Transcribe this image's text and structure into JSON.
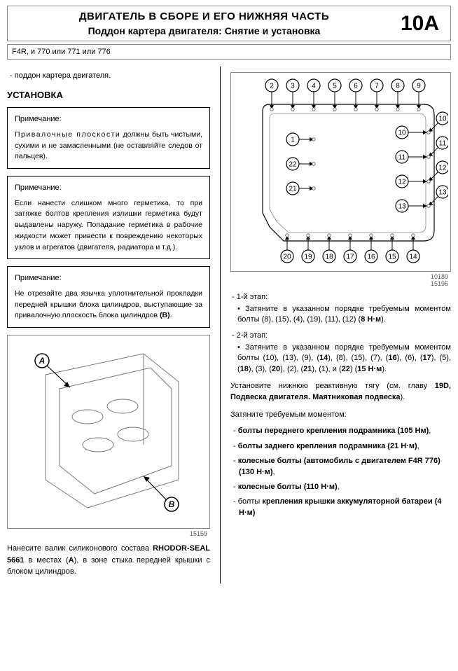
{
  "header": {
    "title1": "ДВИГАТЕЛЬ В СБОРЕ И ЕГО НИЖНЯЯ ЧАСТЬ",
    "title2": "Поддон картера двигателя: Снятие и установка",
    "code": "10A"
  },
  "engine_line": "F4R, и 770 или 771 или 776",
  "intro_item": "поддон картера двигателя.",
  "section_install": "УСТАНОВКА",
  "note1": {
    "label": "Примечание:",
    "text": "Привалочные плоскости должны быть чистыми, сухими и не замасленными (не оставляйте следов от пальцев)."
  },
  "note2": {
    "label": "Примечание:",
    "text": "Если нанести слишком много герметика, то при затяжке болтов крепления излишки герметика будут выдавлены наружу. Попадание герметика в рабочие жидкости может привести к повреждению некоторых узлов и агрегатов (двигателя, радиатора и т.д.)."
  },
  "note3": {
    "label": "Примечание:",
    "text": "Не отрезайте два язычка уплотнительной прокладки передней крышки блока цилиндров, выступающие за привалочную плоскость блока цилиндров (B)."
  },
  "fig_left_num": "15159",
  "caption_left": "Нанесите валик силиконового состава RHODOR-SEAL 5661 в местах (A), в зоне стыка передней крышки с блоком цилиндров.",
  "bolt_diagram": {
    "top_row": [
      2,
      3,
      4,
      5,
      6,
      7,
      8,
      9
    ],
    "right_col": [
      10,
      11,
      12,
      13
    ],
    "bottom_row": [
      20,
      19,
      18,
      17,
      16,
      15,
      14
    ],
    "left_inner": [
      1,
      22,
      21
    ],
    "border_color": "#000",
    "bg_color": "#fff",
    "line_color": "#000",
    "circle_fill": "#fff",
    "fontsize": 10
  },
  "fig_right_inner": "10189",
  "fig_right_num": "15195",
  "stage1_label": "- 1-й этап:",
  "stage1_bullet": "Затяните в указанном порядке требуемым моментом болты (8), (15), (4), (19), (11), (12) (8 Н·м).",
  "stage2_label": "- 2-й этап:",
  "stage2_bullet": "Затяните в указанном порядке требуемым моментом болты (10), (13), (9), (14), (8), (15), (7), (16), (6), (17), (5), (18), (3), (20), (2), (21), (1), и (22) (15 Н·м).",
  "para_reactive": "Установите нижнюю реактивную тягу (см. главу 19D, Подвеска двигателя. Маятниковая подвеска).",
  "para_torque": "Затяните требуемым моментом:",
  "torque_items": [
    "болты переднего крепления подрамника (105 Нм),",
    "болты заднего крепления подрамника (21 Н·м),",
    "колесные болты (автомобиль с двигателем F4R 776) (130 Н·м),",
    "колесные болты (110 Н·м),",
    "болты крепления крышки аккумуляторной батареи (4 Н·м)"
  ]
}
